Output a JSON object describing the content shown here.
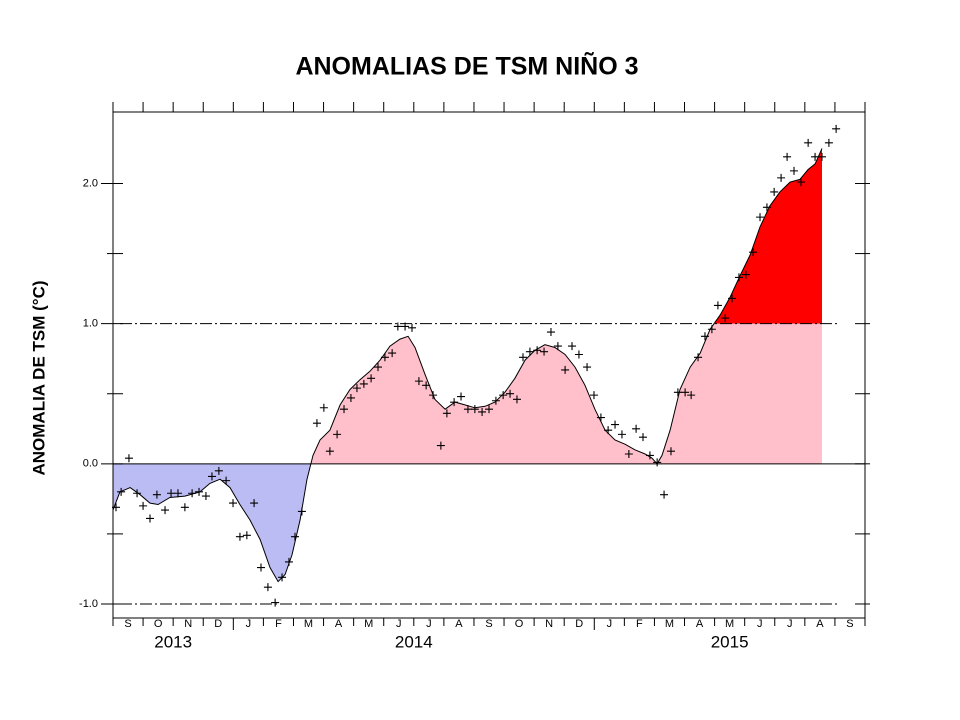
{
  "chart_data": {
    "type": "area",
    "title": "ANOMALIAS DE TSM NIÑO 3",
    "y_label": "ANOMALIA DE TSM (°C)",
    "categories": [
      "S",
      "O",
      "N",
      "D",
      "J",
      "F",
      "M",
      "A",
      "M",
      "J",
      "J",
      "A",
      "S",
      "O",
      "N",
      "D",
      "J",
      "F",
      "M",
      "A",
      "M",
      "J",
      "J",
      "A",
      "S"
    ],
    "years": [
      "2013",
      "2014",
      "2015"
    ],
    "xlim": [
      0,
      25
    ],
    "ylim": [
      -1.1,
      2.51
    ],
    "yticks": [
      {
        "value": -1,
        "label": "-1.0"
      },
      {
        "value": 0,
        "label": "0.0"
      },
      {
        "value": 1,
        "label": "1.0"
      },
      {
        "value": 2,
        "label": "2.0"
      }
    ],
    "y_minor_ticks": [
      -0.5,
      0.5,
      1.5
    ],
    "thresholds": [
      1,
      -1
    ],
    "colors": {
      "negative": "#bcbcf4",
      "positive": "#ffc0cb",
      "above": "#ff0000",
      "line": "#000000"
    },
    "curve": {
      "x": [
        0,
        0.23,
        0.57,
        0.9,
        1.23,
        1.5,
        1.89,
        2.39,
        2.89,
        3.22,
        3.56,
        3.89,
        4.22,
        4.55,
        4.89,
        5.22,
        5.49,
        5.72,
        5.95,
        6.22,
        6.45,
        6.65,
        6.88,
        7.21,
        7.55,
        7.88,
        8.21,
        8.54,
        8.88,
        9.21,
        9.54,
        9.81,
        10.04,
        10.37,
        10.7,
        11.04,
        11.37,
        11.7,
        12.03,
        12.37,
        12.7,
        13.03,
        13.36,
        13.7,
        14.03,
        14.36,
        14.69,
        15.03,
        15.36,
        15.69,
        16.02,
        16.36,
        16.69,
        17.02,
        17.35,
        17.69,
        17.92,
        18.09,
        18.25,
        18.52,
        18.85,
        19.19,
        19.52,
        19.85,
        20.18,
        20.52,
        20.84,
        21.18,
        21.51,
        21.84,
        22.17,
        22.51,
        22.84,
        23.11,
        23.34,
        23.57
      ],
      "values": [
        -0.33,
        -0.2,
        -0.17,
        -0.22,
        -0.28,
        -0.29,
        -0.24,
        -0.23,
        -0.2,
        -0.14,
        -0.11,
        -0.17,
        -0.29,
        -0.4,
        -0.54,
        -0.74,
        -0.84,
        -0.79,
        -0.65,
        -0.4,
        -0.11,
        0.06,
        0.17,
        0.24,
        0.42,
        0.53,
        0.6,
        0.66,
        0.74,
        0.84,
        0.89,
        0.91,
        0.83,
        0.64,
        0.46,
        0.39,
        0.44,
        0.42,
        0.4,
        0.41,
        0.44,
        0.51,
        0.61,
        0.74,
        0.81,
        0.85,
        0.83,
        0.78,
        0.69,
        0.56,
        0.39,
        0.24,
        0.17,
        0.14,
        0.1,
        0.07,
        0.04,
        0,
        0.06,
        0.24,
        0.53,
        0.69,
        0.79,
        0.96,
        1.06,
        1.19,
        1.34,
        1.49,
        1.69,
        1.84,
        1.94,
        2.01,
        2.03,
        2.1,
        2.14,
        2.25
      ]
    },
    "points": {
      "x": [
        0.1,
        0.27,
        0.53,
        0.8,
        1,
        1.23,
        1.46,
        1.73,
        1.93,
        2.16,
        2.39,
        2.63,
        2.86,
        3.09,
        3.29,
        3.52,
        3.76,
        3.99,
        4.22,
        4.45,
        4.69,
        4.92,
        5.15,
        5.39,
        5.62,
        5.85,
        6.05,
        6.28,
        6.78,
        7.01,
        7.21,
        7.45,
        7.68,
        7.91,
        8.11,
        8.34,
        8.58,
        8.81,
        9.04,
        9.28,
        9.47,
        9.71,
        9.94,
        10.17,
        10.41,
        10.64,
        10.9,
        11.1,
        11.34,
        11.57,
        11.8,
        12.03,
        12.27,
        12.5,
        12.73,
        12.97,
        13.2,
        13.43,
        13.63,
        13.86,
        14.1,
        14.33,
        14.56,
        14.79,
        15.03,
        15.26,
        15.49,
        15.76,
        15.99,
        16.22,
        16.46,
        16.69,
        16.92,
        17.15,
        17.39,
        17.62,
        17.85,
        18.09,
        18.32,
        18.55,
        18.78,
        19.02,
        19.22,
        19.45,
        19.68,
        19.91,
        20.11,
        20.35,
        20.58,
        20.81,
        21.04,
        21.28,
        21.51,
        21.74,
        21.98,
        22.21,
        22.41,
        22.64,
        22.87,
        23.11,
        23.34,
        23.57,
        23.8,
        24.04
      ],
      "values": [
        -0.31,
        -0.2,
        0.04,
        -0.21,
        -0.3,
        -0.39,
        -0.22,
        -0.33,
        -0.21,
        -0.21,
        -0.31,
        -0.21,
        -0.2,
        -0.23,
        -0.09,
        -0.05,
        -0.12,
        -0.28,
        -0.52,
        -0.51,
        -0.28,
        -0.74,
        -0.88,
        -0.99,
        -0.81,
        -0.7,
        -0.52,
        -0.34,
        0.29,
        0.4,
        0.09,
        0.21,
        0.39,
        0.47,
        0.54,
        0.57,
        0.61,
        0.69,
        0.76,
        0.79,
        0.98,
        0.98,
        0.97,
        0.59,
        0.56,
        0.49,
        0.13,
        0.36,
        0.44,
        0.48,
        0.39,
        0.39,
        0.37,
        0.39,
        0.45,
        0.49,
        0.5,
        0.46,
        0.76,
        0.8,
        0.81,
        0.8,
        0.94,
        0.84,
        0.67,
        0.84,
        0.78,
        0.69,
        0.49,
        0.33,
        0.24,
        0.28,
        0.21,
        0.07,
        0.25,
        0.19,
        0.06,
        0.01,
        -0.22,
        0.09,
        0.51,
        0.51,
        0.49,
        0.76,
        0.91,
        0.96,
        1.13,
        1.04,
        1.18,
        1.33,
        1.35,
        1.51,
        1.76,
        1.83,
        1.94,
        2.04,
        2.19,
        2.09,
        2.01,
        2.29,
        2.19,
        2.19,
        2.29,
        2.39
      ]
    }
  }
}
